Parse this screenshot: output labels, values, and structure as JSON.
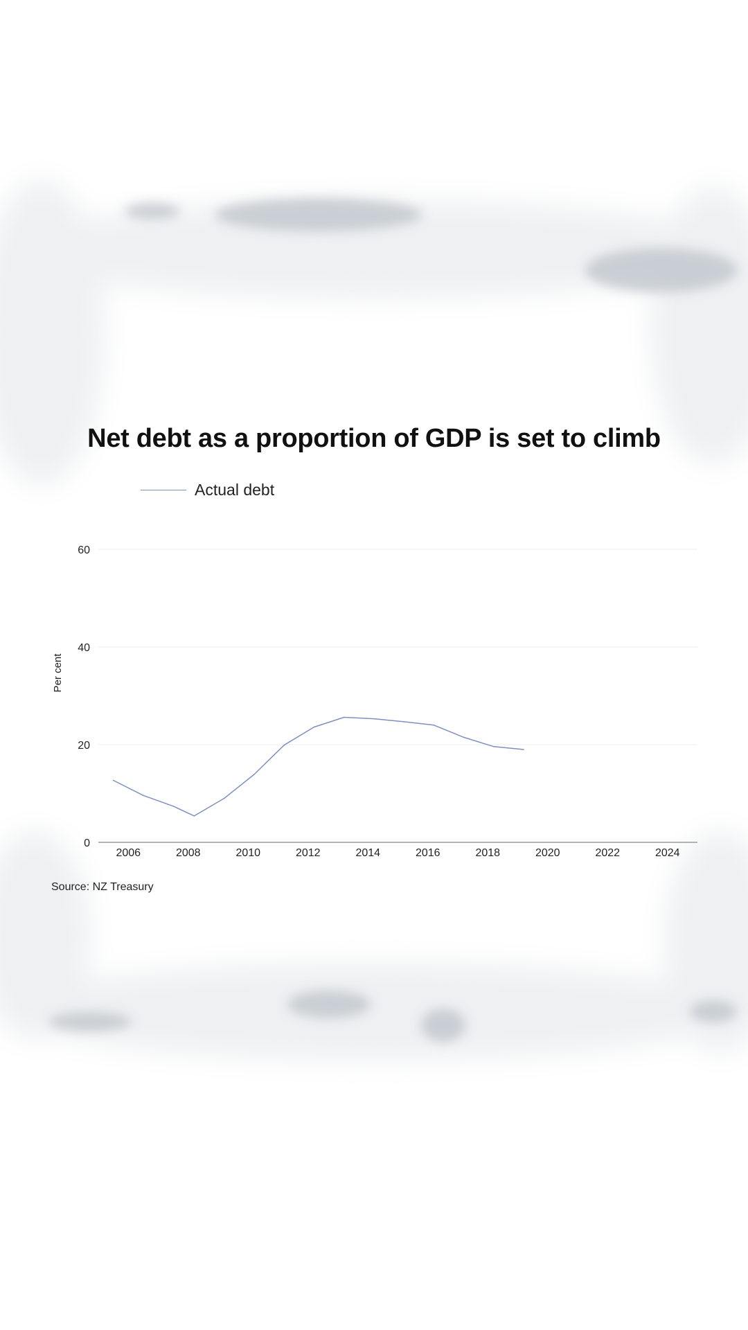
{
  "chart_data": {
    "type": "line",
    "title": "Net debt as a proportion of GDP is set to climb",
    "ylabel": "Per cent",
    "xlabel": "",
    "ylim": [
      0,
      60
    ],
    "xlim": [
      2005,
      2025
    ],
    "y_ticks": [
      "0",
      "20",
      "40",
      "60"
    ],
    "x_ticks": [
      "2006",
      "2008",
      "2010",
      "2012",
      "2014",
      "2016",
      "2018",
      "2020",
      "2022",
      "2024"
    ],
    "grid": true,
    "legend_position": "top-left",
    "series": [
      {
        "name": "Actual debt",
        "color": "#7d90bf",
        "points": [
          {
            "x": 2005.5,
            "y": 12.7
          },
          {
            "x": 2006.5,
            "y": 9.6
          },
          {
            "x": 2007.5,
            "y": 7.4
          },
          {
            "x": 2008.2,
            "y": 5.4
          },
          {
            "x": 2009.2,
            "y": 9.0
          },
          {
            "x": 2010.2,
            "y": 13.9
          },
          {
            "x": 2011.2,
            "y": 19.9
          },
          {
            "x": 2012.2,
            "y": 23.6
          },
          {
            "x": 2013.2,
            "y": 25.6
          },
          {
            "x": 2014.2,
            "y": 25.3
          },
          {
            "x": 2015.2,
            "y": 24.7
          },
          {
            "x": 2016.2,
            "y": 24.0
          },
          {
            "x": 2017.2,
            "y": 21.5
          },
          {
            "x": 2018.2,
            "y": 19.6
          },
          {
            "x": 2019.2,
            "y": 19.0
          }
        ]
      }
    ],
    "source": "Source: NZ Treasury"
  }
}
